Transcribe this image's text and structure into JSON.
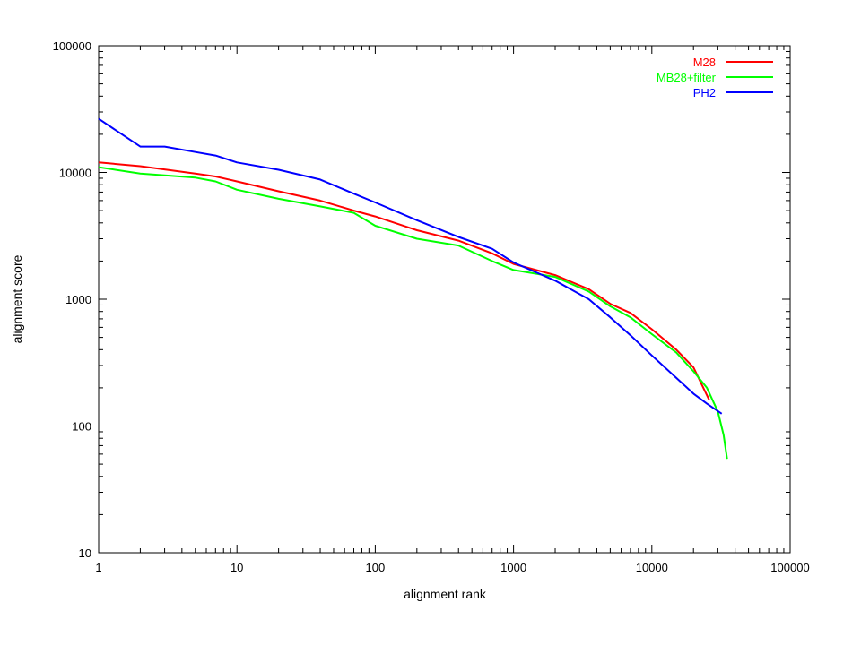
{
  "chart_data": {
    "type": "line",
    "title": "",
    "xlabel": "alignment rank",
    "ylabel": "alignment score",
    "x_scale": "log",
    "y_scale": "log",
    "xlim": [
      1,
      100000
    ],
    "ylim": [
      10,
      100000
    ],
    "x_ticks": [
      1,
      10,
      100,
      1000,
      10000,
      100000
    ],
    "x_tick_labels": [
      "1",
      "10",
      "100",
      "1000",
      "10000",
      "100000"
    ],
    "y_ticks": [
      10,
      100,
      1000,
      10000,
      100000
    ],
    "y_tick_labels": [
      "10",
      "100",
      "1000",
      "10000",
      "100000"
    ],
    "grid": false,
    "legend_position": "top-right",
    "series": [
      {
        "name": "M28",
        "color": "#ff0000",
        "x": [
          1,
          2,
          5,
          7,
          10,
          20,
          40,
          70,
          100,
          200,
          400,
          700,
          1000,
          2000,
          3500,
          5000,
          7000,
          10000,
          15000,
          20000,
          26000
        ],
        "y": [
          12000,
          11200,
          9800,
          9300,
          8500,
          7100,
          6000,
          5000,
          4500,
          3500,
          2900,
          2300,
          1900,
          1550,
          1200,
          920,
          780,
          580,
          400,
          290,
          160
        ]
      },
      {
        "name": "MB28+filter",
        "color": "#00ff00",
        "x": [
          1,
          2,
          5,
          7,
          10,
          20,
          40,
          70,
          100,
          200,
          400,
          700,
          1000,
          2000,
          3500,
          5000,
          7000,
          10000,
          15000,
          20000,
          25000,
          30000,
          33000,
          35000
        ],
        "y": [
          11000,
          9800,
          9100,
          8500,
          7300,
          6200,
          5400,
          4800,
          3800,
          3000,
          2650,
          2000,
          1700,
          1500,
          1150,
          880,
          720,
          530,
          380,
          270,
          200,
          130,
          85,
          55
        ]
      },
      {
        "name": "PH2",
        "color": "#0000ff",
        "x": [
          1,
          2,
          3,
          5,
          7,
          10,
          20,
          40,
          70,
          100,
          200,
          400,
          700,
          1000,
          2000,
          3500,
          5000,
          7000,
          10000,
          15000,
          20000,
          25000,
          32000
        ],
        "y": [
          26500,
          16000,
          16000,
          14500,
          13600,
          12000,
          10500,
          8800,
          6800,
          5800,
          4200,
          3100,
          2500,
          1950,
          1400,
          1000,
          720,
          520,
          360,
          240,
          180,
          150,
          125
        ]
      }
    ]
  }
}
